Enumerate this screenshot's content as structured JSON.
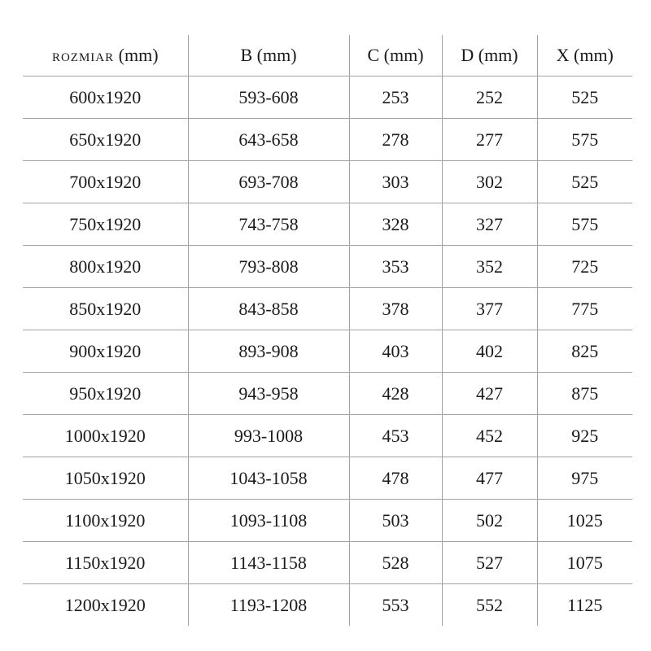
{
  "page": {
    "background": "#ffffff",
    "line_color": "#a3a3a3",
    "text_color": "#1a1a1a"
  },
  "table": {
    "headers": [
      {
        "name": "ROZMIAR",
        "unit": "(mm)",
        "small": true
      },
      {
        "name": "B",
        "unit": "(mm)",
        "small": false
      },
      {
        "name": "C",
        "unit": "(mm)",
        "small": false
      },
      {
        "name": "D",
        "unit": "(mm)",
        "small": false
      },
      {
        "name": "X",
        "unit": "(mm)",
        "small": false
      }
    ],
    "rows": [
      [
        "600x1920",
        "593-608",
        "253",
        "252",
        "525"
      ],
      [
        "650x1920",
        "643-658",
        "278",
        "277",
        "575"
      ],
      [
        "700x1920",
        "693-708",
        "303",
        "302",
        "525"
      ],
      [
        "750x1920",
        "743-758",
        "328",
        "327",
        "575"
      ],
      [
        "800x1920",
        "793-808",
        "353",
        "352",
        "725"
      ],
      [
        "850x1920",
        "843-858",
        "378",
        "377",
        "775"
      ],
      [
        "900x1920",
        "893-908",
        "403",
        "402",
        "825"
      ],
      [
        "950x1920",
        "943-958",
        "428",
        "427",
        "875"
      ],
      [
        "1000x1920",
        "993-1008",
        "453",
        "452",
        "925"
      ],
      [
        "1050x1920",
        "1043-1058",
        "478",
        "477",
        "975"
      ],
      [
        "1100x1920",
        "1093-1108",
        "503",
        "502",
        "1025"
      ],
      [
        "1150x1920",
        "1143-1158",
        "528",
        "527",
        "1075"
      ],
      [
        "1200x1920",
        "1193-1208",
        "553",
        "552",
        "1125"
      ]
    ]
  }
}
